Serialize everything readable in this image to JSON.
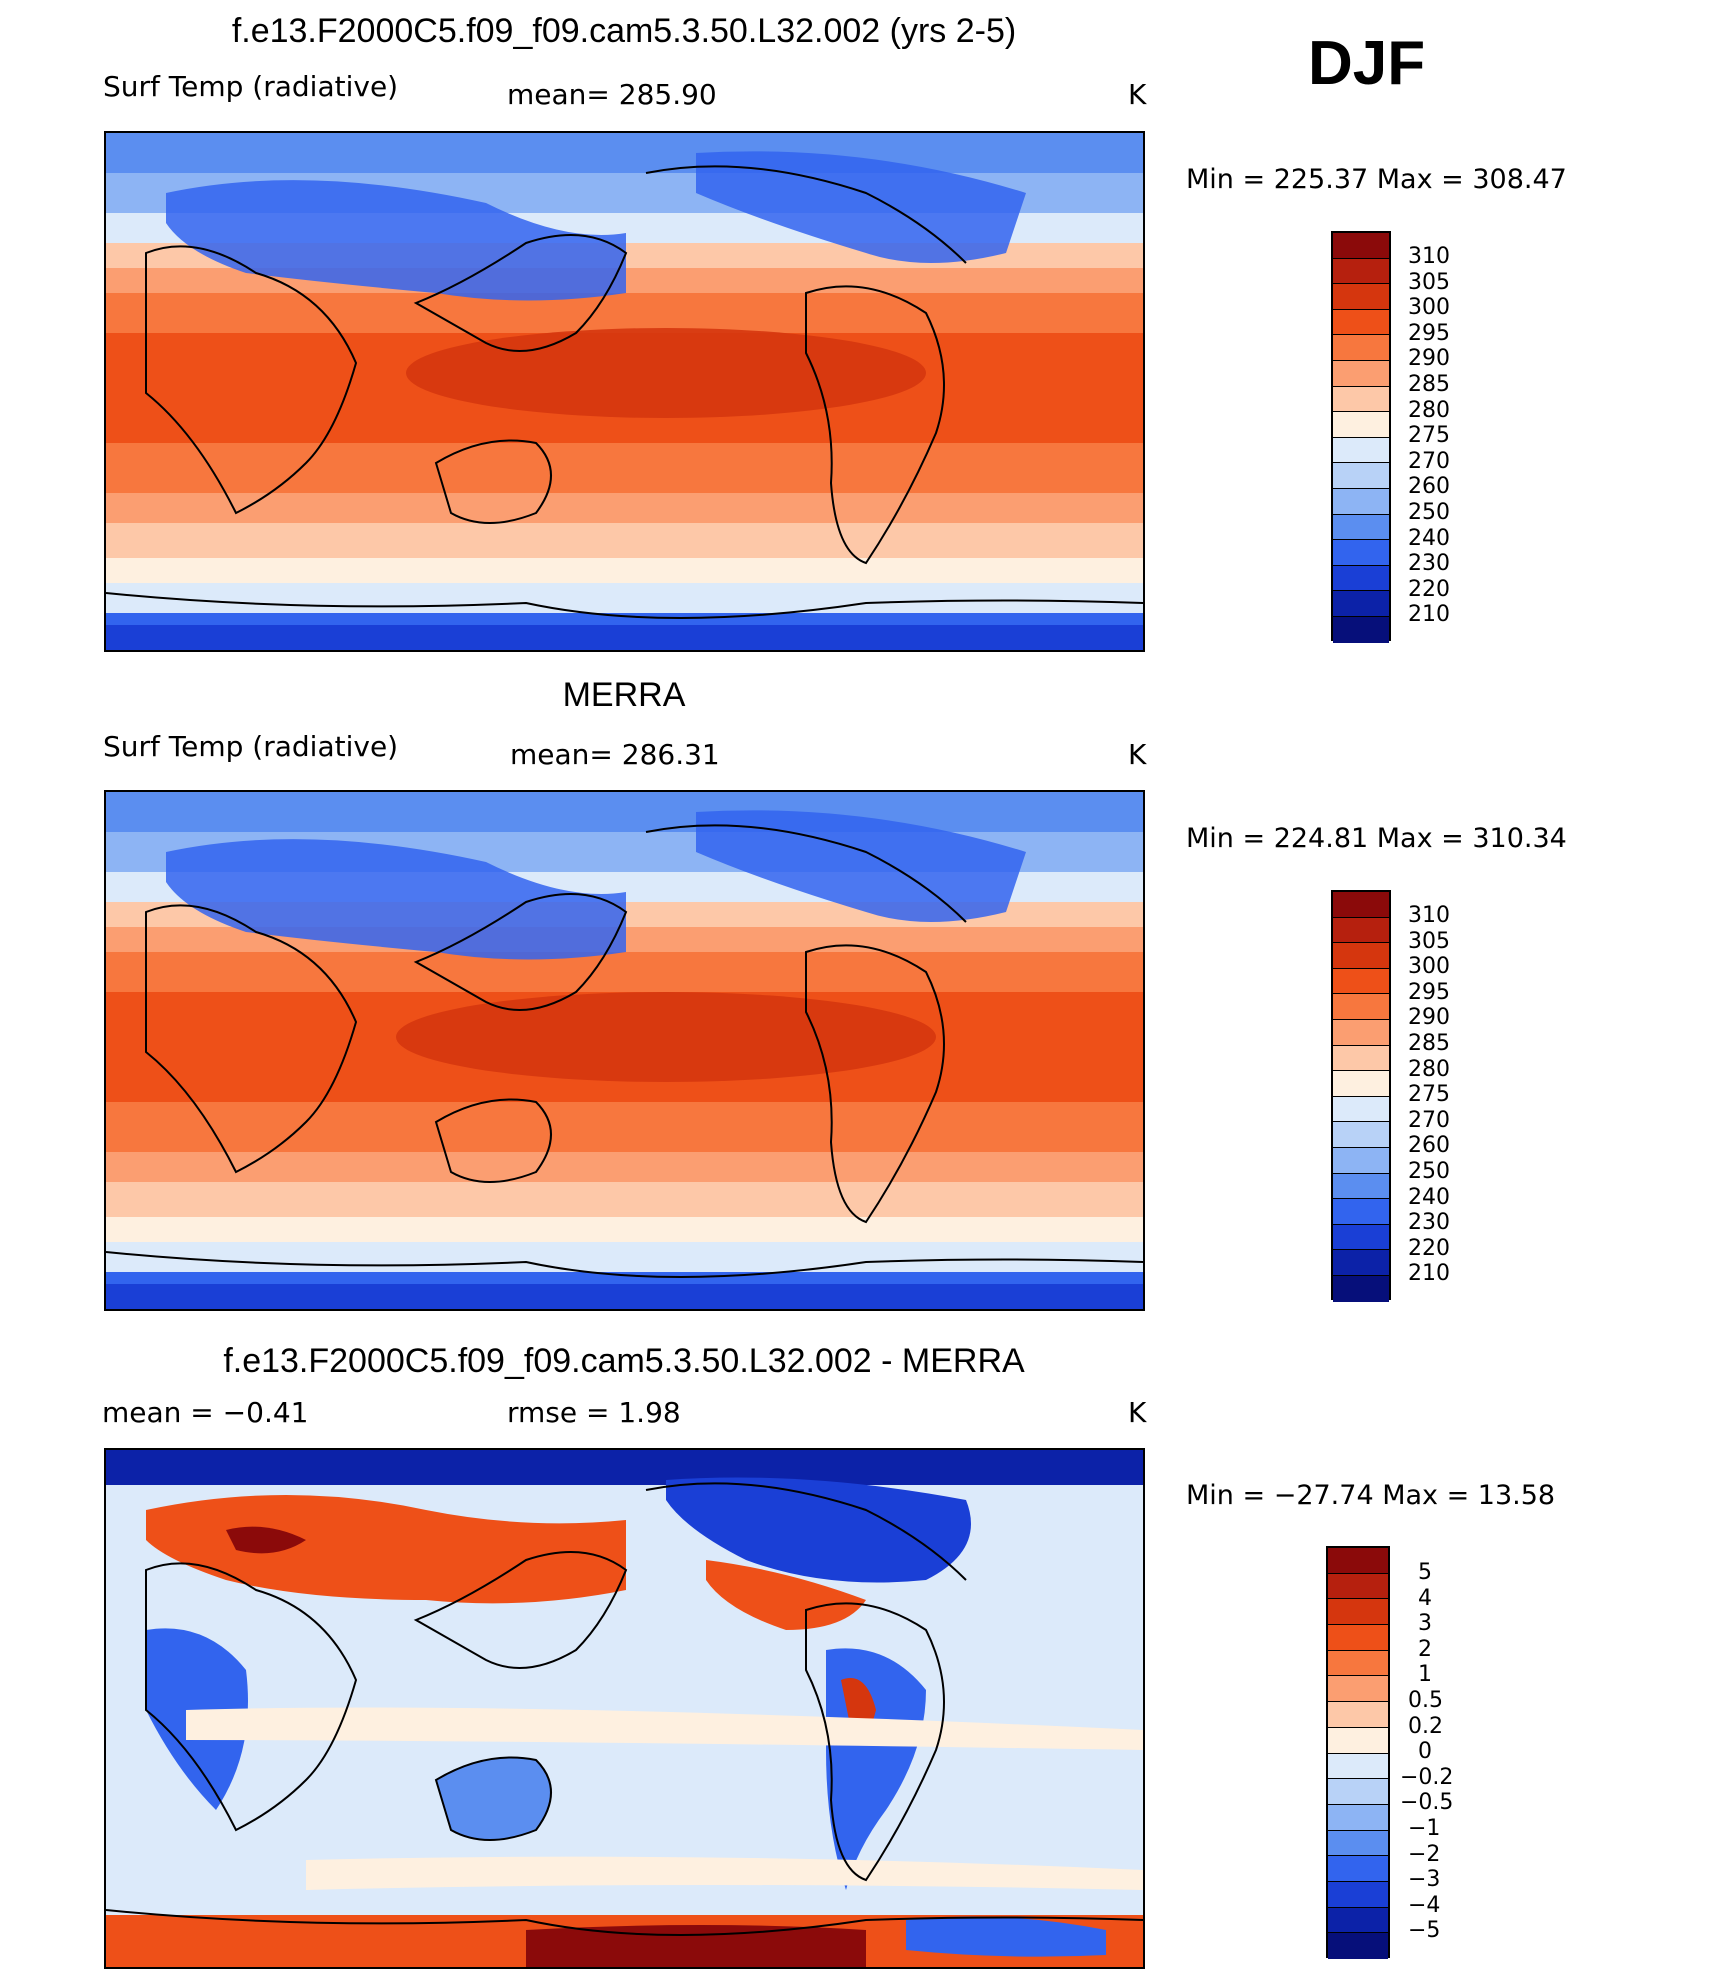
{
  "season": "DJF",
  "colors": {
    "temp_scale": [
      "#8b0a0a",
      "#b6200e",
      "#d5360e",
      "#ee5018",
      "#f7773e",
      "#fb9e71",
      "#fdc8a8",
      "#fef0e0",
      "#dceafa",
      "#b8d2f7",
      "#8db4f4",
      "#5b8ef0",
      "#3264ee",
      "#1a3fd6",
      "#0c22a8",
      "#060f7a"
    ],
    "diff_scale": [
      "#8b0a0a",
      "#b6200e",
      "#d5360e",
      "#ee5018",
      "#f7773e",
      "#fb9e71",
      "#fdc8a8",
      "#fef0e0",
      "#dceafa",
      "#b8d2f7",
      "#8db4f4",
      "#5b8ef0",
      "#3264ee",
      "#1a3fd6",
      "#0c22a8",
      "#060f7a"
    ],
    "land_outline": "#000000"
  },
  "panels": [
    {
      "title": "f.e13.F2000C5.f09_f09.cam5.3.50.L32.002 (yrs 2-5)",
      "left_label": "Surf Temp (radiative)",
      "center_label": "mean=  285.90",
      "units": "K",
      "minmax": "Min  =  225.37  Max  =  308.47",
      "colorbar_labels": [
        "310",
        "305",
        "300",
        "295",
        "290",
        "285",
        "280",
        "275",
        "270",
        "260",
        "250",
        "240",
        "230",
        "220",
        "210"
      ]
    },
    {
      "title": "MERRA",
      "left_label": "Surf Temp (radiative)",
      "center_label": "mean=  286.31",
      "units": "K",
      "minmax": "Min  =  224.81  Max  =  310.34",
      "colorbar_labels": [
        "310",
        "305",
        "300",
        "295",
        "290",
        "285",
        "280",
        "275",
        "270",
        "260",
        "250",
        "240",
        "230",
        "220",
        "210"
      ]
    },
    {
      "title": "f.e13.F2000C5.f09_f09.cam5.3.50.L32.002 - MERRA",
      "left_label": "mean  =    −0.41",
      "center_label": "rmse  =     1.98",
      "units": "K",
      "minmax": "Min  =  −27.74  Max  =    13.58",
      "colorbar_labels": [
        "5",
        "4",
        "3",
        "2",
        "1",
        "0.5",
        "0.2",
        "0",
        "−0.2",
        "−0.5",
        "−1",
        "−2",
        "−3",
        "−4",
        "−5"
      ]
    }
  ]
}
